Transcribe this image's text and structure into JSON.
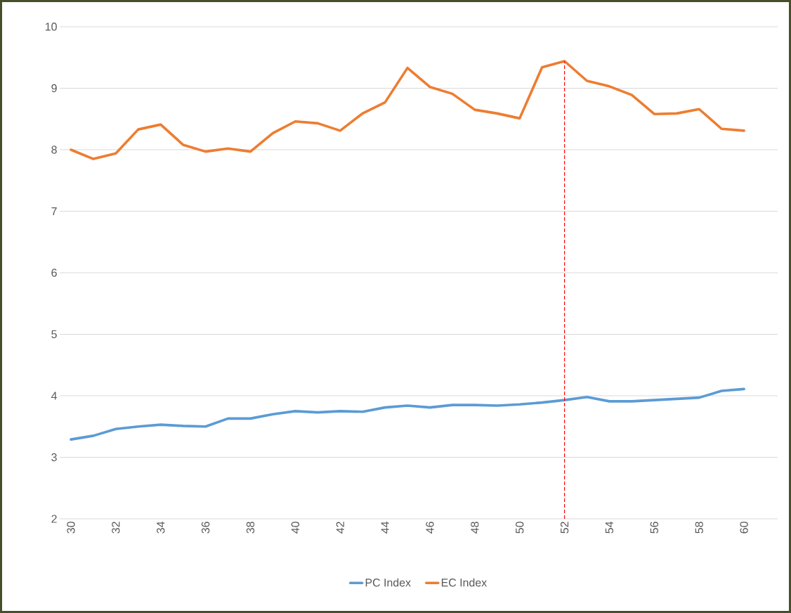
{
  "chart_data": {
    "type": "line",
    "x": [
      30,
      31,
      32,
      33,
      34,
      35,
      36,
      37,
      38,
      39,
      40,
      41,
      42,
      43,
      44,
      45,
      46,
      47,
      48,
      49,
      50,
      51,
      52,
      53,
      54,
      55,
      56,
      57,
      58,
      59,
      60
    ],
    "series": [
      {
        "name": "PC Index",
        "color": "#5b9bd5",
        "values": [
          3.29,
          3.35,
          3.46,
          3.5,
          3.53,
          3.51,
          3.5,
          3.63,
          3.63,
          3.7,
          3.75,
          3.73,
          3.75,
          3.74,
          3.81,
          3.84,
          3.81,
          3.85,
          3.85,
          3.84,
          3.86,
          3.89,
          3.93,
          3.98,
          3.91,
          3.91,
          3.93,
          3.95,
          3.97,
          4.08,
          4.11
        ]
      },
      {
        "name": "EC Index",
        "color": "#ed7d31",
        "values": [
          8.0,
          7.85,
          7.94,
          8.33,
          8.41,
          8.08,
          7.97,
          8.02,
          7.97,
          8.27,
          8.46,
          8.43,
          8.31,
          8.59,
          8.77,
          9.33,
          9.02,
          8.91,
          8.65,
          8.59,
          8.51,
          9.34,
          9.44,
          9.12,
          9.03,
          8.89,
          8.58,
          8.59,
          8.66,
          8.34,
          8.31
        ]
      }
    ],
    "xlim": [
      29.5,
      61.5
    ],
    "ylim": [
      2,
      10
    ],
    "xticks": [
      30,
      32,
      34,
      36,
      38,
      40,
      42,
      44,
      46,
      48,
      50,
      52,
      54,
      56,
      58,
      60
    ],
    "yticks": [
      2,
      3,
      4,
      5,
      6,
      7,
      8,
      9,
      10
    ],
    "grid": "y",
    "legend": "bottom",
    "ref_lines": [
      {
        "axis": "x",
        "value": 52,
        "color": "#ff0000",
        "line_style": "dashed"
      }
    ]
  }
}
